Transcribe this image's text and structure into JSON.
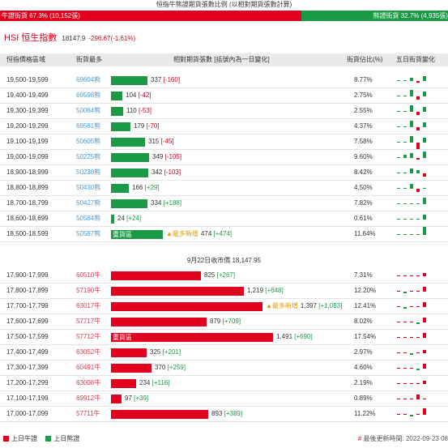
{
  "ratio": {
    "caption": "恒指牛熊證期貨張數比例 (以相對期貨張數計算)",
    "bull_label": "牛證街貨 67.3% (10,152張)",
    "bear_label": "熊證街貨 32.7% (4,935張)",
    "bull_pct": 67.3,
    "bear_pct": 32.7
  },
  "index": {
    "name": "HSI 恒生指數",
    "value": "18147.9",
    "change": "-296.67(-1.61%)"
  },
  "headers": {
    "range": "恒指價格區域",
    "code": "街貨最多",
    "contracts": "相對期貨張數 [括號內為一日變化]",
    "pct": "街貨佔比(%)",
    "trend": "五日街貨變化"
  },
  "bear_rows": [
    {
      "range": "19,500-19,599",
      "code": "69604熊",
      "value": "337",
      "delta": "[-160]",
      "pct": "8.77%",
      "amount": 337,
      "spark": [
        [
          0,
          -1
        ],
        [
          0,
          -2
        ],
        [
          2,
          1
        ],
        [
          -1,
          2
        ],
        [
          3,
          0
        ]
      ]
    },
    {
      "range": "19,400-19,499",
      "code": "69598熊",
      "value": "104",
      "delta": "[-42]",
      "pct": "2.75%",
      "amount": 104,
      "spark": [
        [
          0,
          -1
        ],
        [
          1,
          -1
        ],
        [
          4,
          1
        ],
        [
          -2,
          -1
        ],
        [
          3,
          3
        ]
      ]
    },
    {
      "range": "19,300-19,399",
      "code": "50064熊",
      "value": "110",
      "delta": "[-53]",
      "pct": "2.55%",
      "amount": 110,
      "spark": [
        [
          0,
          -1
        ],
        [
          1,
          -1
        ],
        [
          4,
          -1
        ],
        [
          -2,
          3
        ],
        [
          3,
          3
        ]
      ]
    },
    {
      "range": "19,200-19,299",
      "code": "69581熊",
      "value": "179",
      "delta": "[-70]",
      "pct": "4.37%",
      "amount": 179,
      "spark": [
        [
          0,
          -1
        ],
        [
          1,
          -1
        ],
        [
          4,
          -1
        ],
        [
          -2,
          3
        ],
        [
          3,
          3
        ]
      ]
    },
    {
      "range": "19,100-19,199",
      "code": "50605熊",
      "value": "315",
      "delta": "[-45]",
      "pct": "7.58%",
      "amount": 315,
      "spark": [
        [
          0,
          -1
        ],
        [
          1,
          -1
        ],
        [
          4,
          1
        ],
        [
          -4,
          2
        ],
        [
          3,
          3
        ]
      ]
    },
    {
      "range": "19,000-19,099",
      "code": "50225熊",
      "value": "349",
      "delta": "[-105]",
      "pct": "9.60%",
      "amount": 349,
      "spark": [
        [
          0,
          -1
        ],
        [
          2,
          -1
        ],
        [
          3,
          1
        ],
        [
          -1,
          3
        ],
        [
          4,
          3
        ]
      ]
    },
    {
      "range": "18,900-18,999",
      "code": "50238熊",
      "value": "342",
      "delta": "[-103]",
      "pct": "8.42%",
      "amount": 342,
      "spark": [
        [
          0,
          -1
        ],
        [
          1,
          -1
        ],
        [
          3,
          2
        ],
        [
          2,
          1
        ],
        [
          -2,
          -1
        ]
      ]
    },
    {
      "range": "18,800-18,899",
      "code": "50430熊",
      "value": "166",
      "delta": "[+29]",
      "pct": "4.50%",
      "amount": 166,
      "spark": [
        [
          0,
          -1
        ],
        [
          1,
          -1
        ],
        [
          3,
          -1
        ],
        [
          -2,
          -1
        ],
        [
          1,
          -1
        ]
      ]
    },
    {
      "range": "18,700-18,799",
      "code": "50427熊",
      "value": "334",
      "delta": "[+188]",
      "pct": "7.82%",
      "amount": 334,
      "spark": [
        [
          0,
          -1
        ],
        [
          0,
          -1
        ],
        [
          0,
          -1
        ],
        [
          1,
          -1
        ],
        [
          4,
          -1
        ]
      ]
    },
    {
      "range": "18,600-18,699",
      "code": "50584熊",
      "value": "24",
      "delta": "[+24]",
      "pct": "0.61%",
      "amount": 24,
      "spark": [
        [
          0,
          -1
        ],
        [
          0,
          -1
        ],
        [
          0,
          -1
        ],
        [
          0,
          -1
        ],
        [
          3,
          -1
        ]
      ]
    },
    {
      "range": "18,500-18,599",
      "code": "50587熊",
      "value": "474",
      "delta": "[+474]",
      "pct": "11.64%",
      "amount": 474,
      "bar_label": "重貨區",
      "badge": "▲最多新增",
      "spark": [
        [
          0,
          -1
        ],
        [
          0,
          -1
        ],
        [
          0,
          -1
        ],
        [
          0,
          -1
        ],
        [
          5,
          -1
        ]
      ]
    }
  ],
  "midline": "9月22日收市價 18,147.95",
  "bull_rows": [
    {
      "range": "17,900-17,999",
      "code": "60510牛",
      "value": "825",
      "delta": "[+267]",
      "pct": "7.31%",
      "amount": 825,
      "spark": [
        [
          0,
          -1
        ],
        [
          1,
          -1
        ],
        [
          1,
          -1
        ],
        [
          1,
          -1
        ],
        [
          2,
          -1
        ]
      ]
    },
    {
      "range": "17,800-17,899",
      "code": "57190牛",
      "value": "1,219",
      "delta": "[+648]",
      "pct": "12.20%",
      "amount": 1219,
      "spark": [
        [
          0,
          -1
        ],
        [
          -1,
          -1
        ],
        [
          1,
          -1
        ],
        [
          1,
          -1
        ],
        [
          3,
          -1
        ]
      ]
    },
    {
      "range": "17,700-17,799",
      "code": "63017牛",
      "value": "1,397",
      "delta": "[+1,083]",
      "pct": "12.41%",
      "amount": 1397,
      "badge": "▲最多新增",
      "spark": [
        [
          0,
          -1
        ],
        [
          -1,
          -1
        ],
        [
          1,
          -1
        ],
        [
          1,
          -1
        ],
        [
          3,
          -1
        ]
      ]
    },
    {
      "range": "17,600-17,699",
      "code": "57717牛",
      "value": "879",
      "delta": "[+709]",
      "pct": "8.02%",
      "amount": 879,
      "spark": [
        [
          0,
          -1
        ],
        [
          0,
          -1
        ],
        [
          1,
          -1
        ],
        [
          -1,
          -1
        ],
        [
          3,
          -1
        ]
      ]
    },
    {
      "range": "17,500-17,599",
      "code": "57712牛",
      "value": "1,491",
      "delta": "[+690]",
      "pct": "17.54%",
      "amount": 1491,
      "bar_label": "重貨區",
      "spark": [
        [
          0,
          -1
        ],
        [
          1,
          -1
        ],
        [
          1,
          -1
        ],
        [
          1,
          -1
        ],
        [
          3,
          -1
        ]
      ]
    },
    {
      "range": "17,400-17,499",
      "code": "63052牛",
      "value": "325",
      "delta": "[+201]",
      "pct": "2.97%",
      "amount": 325,
      "spark": [
        [
          0,
          -1
        ],
        [
          0,
          -1
        ],
        [
          -1,
          -1
        ],
        [
          1,
          -1
        ],
        [
          2,
          -1
        ]
      ]
    },
    {
      "range": "17,300-17,399",
      "code": "60491牛",
      "value": "370",
      "delta": "[+259]",
      "pct": "4.60%",
      "amount": 370,
      "spark": [
        [
          0,
          -1
        ],
        [
          0,
          -1
        ],
        [
          1,
          -1
        ],
        [
          -1,
          -1
        ],
        [
          3,
          -1
        ]
      ]
    },
    {
      "range": "17,200-17,299",
      "code": "63008牛",
      "value": "234",
      "delta": "[+116]",
      "pct": "2.19%",
      "amount": 234,
      "spark": [
        [
          0,
          -1
        ],
        [
          0,
          -1
        ],
        [
          1,
          -1
        ],
        [
          1,
          -1
        ],
        [
          2,
          -1
        ]
      ]
    },
    {
      "range": "17,100-17,199",
      "code": "69912牛",
      "value": "97",
      "delta": "[+39]",
      "pct": "0.89%",
      "amount": 97,
      "spark": [
        [
          0,
          -1
        ],
        [
          0,
          -1
        ],
        [
          0,
          -1
        ],
        [
          3,
          -1
        ],
        [
          1,
          -1
        ]
      ]
    },
    {
      "range": "17,000-17,099",
      "code": "57711牛",
      "value": "893",
      "delta": "[+389]",
      "pct": "11.22%",
      "amount": 893,
      "spark": [
        [
          0,
          -1
        ],
        [
          1,
          -1
        ],
        [
          -1,
          -1
        ],
        [
          1,
          -1
        ],
        [
          4,
          -1
        ]
      ]
    }
  ],
  "legend": {
    "bull": "上日牛證",
    "bear": "上日熊證"
  },
  "updated": {
    "hash": "#",
    "text": " 最後更新時間: 2022-09-23 08"
  },
  "colors": {
    "bull": "#e1011d",
    "bear": "#1b9a45",
    "delta_neg": "#d8001e",
    "delta_pos": "#1b9a45",
    "badge": "#e39b00"
  }
}
